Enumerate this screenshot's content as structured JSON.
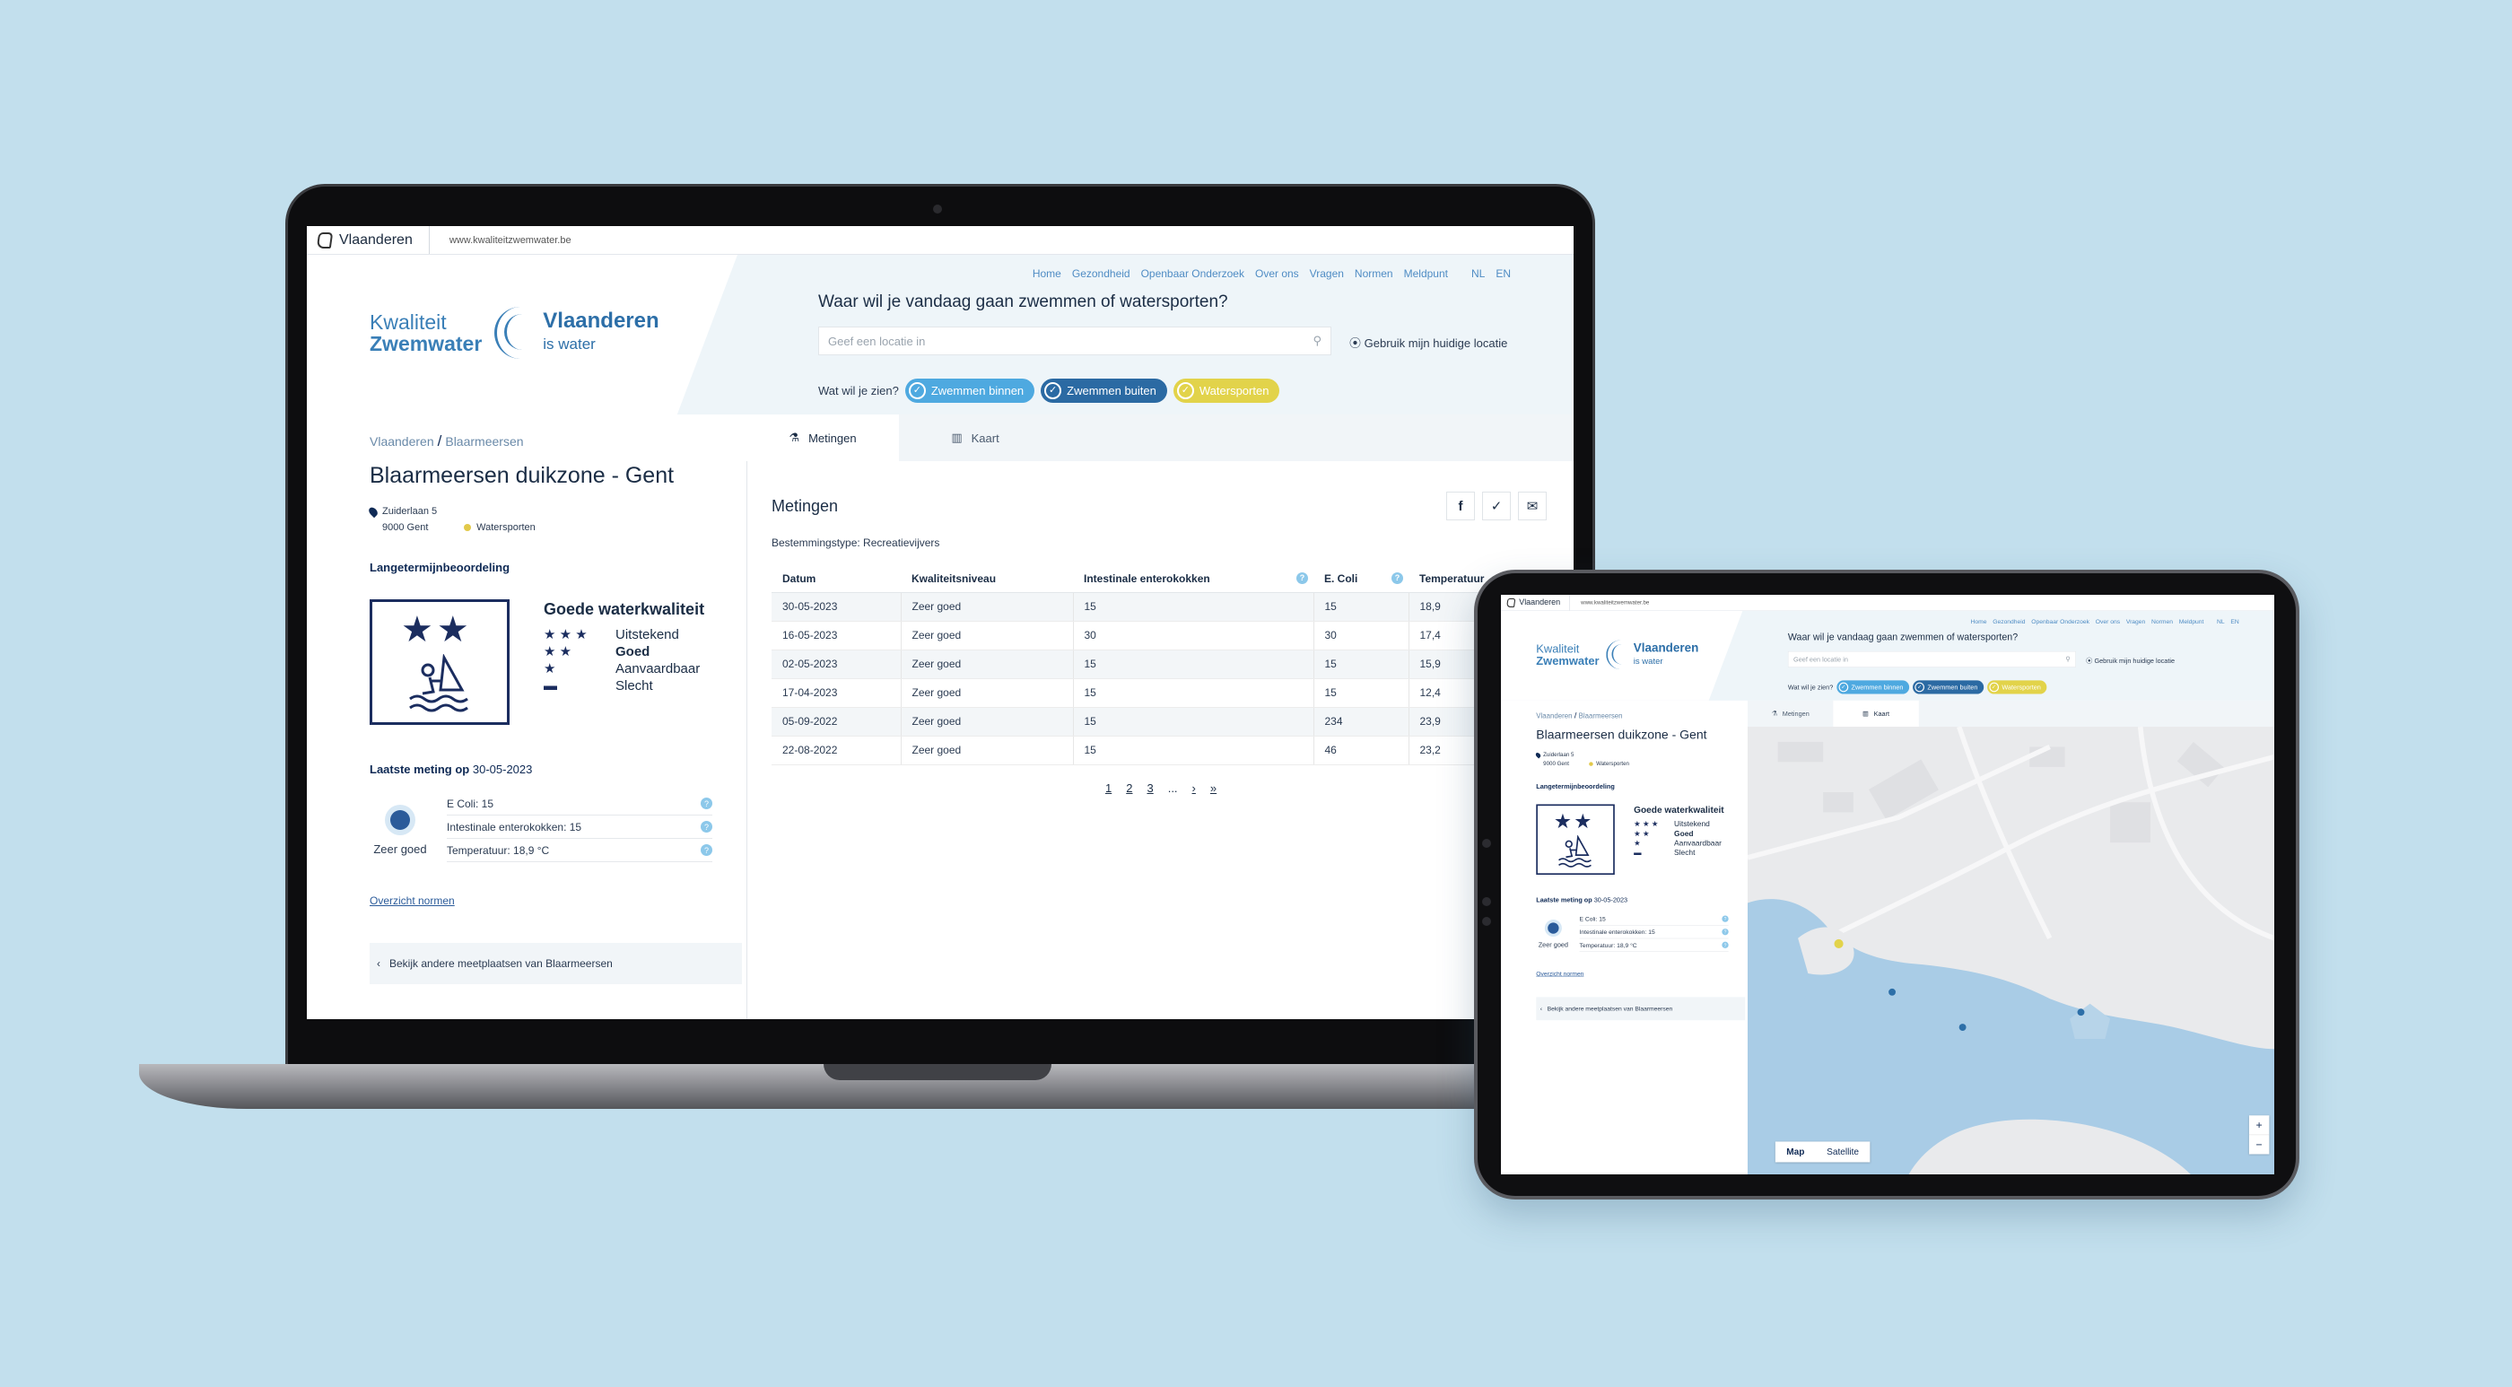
{
  "site": {
    "topbar": {
      "region": "Vlaanderen",
      "url": "www.kwaliteitzwemwater.be"
    },
    "logo": {
      "line1": "Kwaliteit",
      "line2": "Zwemwater",
      "brand": "Vlaanderen",
      "tagline": "is water"
    },
    "nav": [
      "Home",
      "Gezondheid",
      "Openbaar Onderzoek",
      "Over ons",
      "Vragen",
      "Normen",
      "Meldpunt"
    ],
    "lang": [
      "NL",
      "EN"
    ],
    "question": "Waar wil je vandaag gaan zwemmen of watersporten?",
    "search": {
      "placeholder": "Geef een locatie in",
      "location_label": "Gebruik mijn huidige locatie"
    },
    "filters": {
      "label": "Wat wil je zien?",
      "items": [
        "Zwemmen binnen",
        "Zwemmen buiten",
        "Watersporten"
      ]
    },
    "breadcrumb": [
      "Vlaanderen",
      "Blaarmeersen"
    ],
    "title": "Blaarmeersen duikzone - Gent",
    "address": {
      "street": "Zuiderlaan 5",
      "city": "9000 Gent",
      "type": "Watersporten"
    },
    "long_term": {
      "heading": "Langetermijnbeoordeling",
      "quality": "Goede waterkwaliteit",
      "levels": [
        {
          "stars": "★ ★ ★",
          "label": "Uitstekend"
        },
        {
          "stars": "★ ★",
          "label": "Goed"
        },
        {
          "stars": "★",
          "label": "Aanvaardbaar"
        },
        {
          "stars": "▬",
          "label": "Slecht"
        }
      ]
    },
    "last": {
      "heading": "Laatste meting op",
      "date": "30-05-2023",
      "badge": "Zeer goed",
      "rows": [
        "E Coli: 15",
        "Intestinale enterokokken: 15",
        "Temperatuur: 18,9 °C"
      ]
    },
    "norms_link": "Overzicht normen",
    "back_link": "Bekijk andere meetplaatsen van Blaarmeersen",
    "tabs": [
      "Metingen",
      "Kaart"
    ],
    "metingen": {
      "heading": "Metingen",
      "type": "Bestemmingstype: Recreatievijvers",
      "columns": [
        "Datum",
        "Kwaliteitsniveau",
        "Intestinale enterokokken",
        "E. Coli",
        "Temperatuur"
      ],
      "rows": [
        [
          "30-05-2023",
          "Zeer goed",
          "15",
          "15",
          "18,9"
        ],
        [
          "16-05-2023",
          "Zeer goed",
          "30",
          "30",
          "17,4"
        ],
        [
          "02-05-2023",
          "Zeer goed",
          "15",
          "15",
          "15,9"
        ],
        [
          "17-04-2023",
          "Zeer goed",
          "15",
          "15",
          "12,4"
        ],
        [
          "05-09-2022",
          "Zeer goed",
          "15",
          "234",
          "23,9"
        ],
        [
          "22-08-2022",
          "Zeer goed",
          "15",
          "46",
          "23,2"
        ]
      ],
      "pages": [
        "1",
        "2",
        "3",
        "...",
        "›",
        "»"
      ]
    },
    "map": {
      "map_btn": "Map",
      "satellite_btn": "Satellite",
      "zoom_in": "+",
      "zoom_out": "−"
    }
  }
}
